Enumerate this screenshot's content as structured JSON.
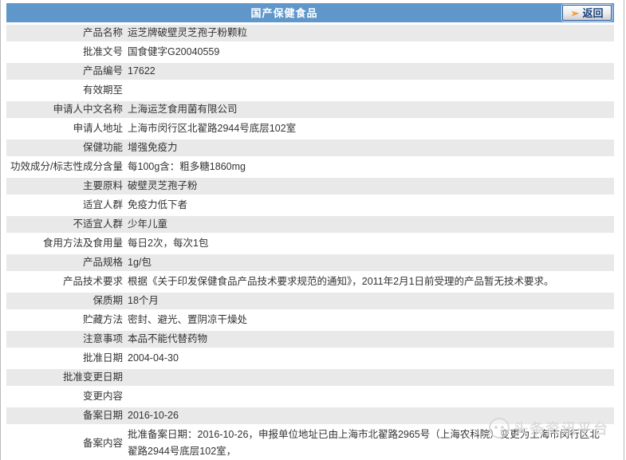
{
  "header": {
    "title": "国产保健食品",
    "back_button": {
      "label": "返回",
      "icon": "arrow-right-icon"
    }
  },
  "table": {
    "rows": [
      {
        "label": "产品名称",
        "value": "运芝牌破壁灵芝孢子粉颗粒"
      },
      {
        "label": "批准文号",
        "value": "国食健字G20040559"
      },
      {
        "label": "产品编号",
        "value": "17622"
      },
      {
        "label": "有效期至",
        "value": ""
      },
      {
        "label": "申请人中文名称",
        "value": "上海运芝食用菌有限公司"
      },
      {
        "label": "申请人地址",
        "value": "上海市闵行区北翟路2944号底层102室"
      },
      {
        "label": "保健功能",
        "value": "增强免疫力"
      },
      {
        "label": "功效成分/标志性成分含量",
        "value": "每100g含：粗多糖1860mg"
      },
      {
        "label": "主要原料",
        "value": "破壁灵芝孢子粉"
      },
      {
        "label": "适宜人群",
        "value": "免疫力低下者"
      },
      {
        "label": "不适宜人群",
        "value": "少年儿童"
      },
      {
        "label": "食用方法及食用量",
        "value": "每日2次，每次1包"
      },
      {
        "label": "产品规格",
        "value": "1g/包"
      },
      {
        "label": "产品技术要求",
        "value": "根据《关于印发保健食品产品技术要求规范的通知》，2011年2月1日前受理的产品暂无技术要求。"
      },
      {
        "label": "保质期",
        "value": "18个月"
      },
      {
        "label": "贮藏方法",
        "value": "密封、避光、置阴凉干燥处"
      },
      {
        "label": "注意事项",
        "value": "本品不能代替药物"
      },
      {
        "label": "批准日期",
        "value": "2004-04-30"
      },
      {
        "label": "批准变更日期",
        "value": ""
      },
      {
        "label": "变更内容",
        "value": ""
      },
      {
        "label": "备案日期",
        "value": "2016-10-26"
      },
      {
        "label": "备案内容",
        "value": "批准备案日期：2016-10-26，申报单位地址已由上海市北翟路2965号（上海农科院）变更为上海市闵行区北翟路2944号底层102室，"
      }
    ]
  },
  "watermark": {
    "text": "头条资讯平台"
  },
  "colors": {
    "header_blue": "#5f97cb",
    "stripe_gray": "#e9e9e9",
    "button_text_navy": "#17427f",
    "arrow_orange": "#f7941d",
    "text": "#333333",
    "watermark_gray": "#d6d6d6"
  }
}
